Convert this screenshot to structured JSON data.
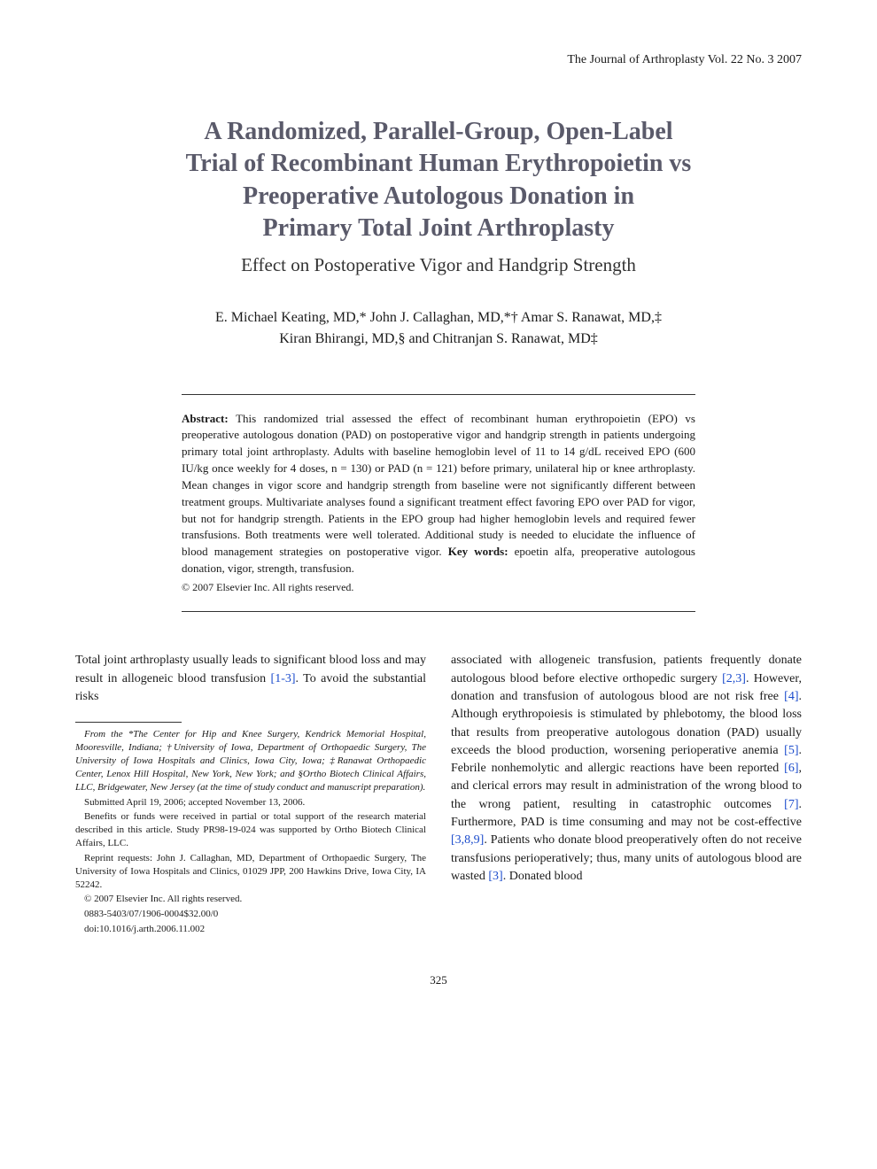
{
  "journal_header": "The Journal of Arthroplasty Vol. 22 No. 3 2007",
  "title_lines": [
    "A Randomized, Parallel-Group, Open-Label",
    "Trial of Recombinant Human Erythropoietin vs",
    "Preoperative Autologous Donation in",
    "Primary Total Joint Arthroplasty"
  ],
  "subtitle": "Effect on Postoperative Vigor and Handgrip Strength",
  "authors_line1": "E. Michael Keating, MD,* John J. Callaghan, MD,*† Amar S. Ranawat, MD,‡",
  "authors_line2": "Kiran Bhirangi, MD,§ and Chitranjan S. Ranawat, MD‡",
  "abstract": {
    "label": "Abstract:",
    "text": " This randomized trial assessed the effect of recombinant human erythropoietin (EPO) vs preoperative autologous donation (PAD) on postoperative vigor and handgrip strength in patients undergoing primary total joint arthroplasty. Adults with baseline hemoglobin level of 11 to 14 g/dL received EPO (600 IU/kg once weekly for 4 doses, n = 130) or PAD (n = 121) before primary, unilateral hip or knee arthroplasty. Mean changes in vigor score and handgrip strength from baseline were not significantly different between treatment groups. Multivariate analyses found a significant treatment effect favoring EPO over PAD for vigor, but not for handgrip strength. Patients in the EPO group had higher hemoglobin levels and required fewer transfusions. Both treatments were well tolerated. Additional study is needed to elucidate the influence of blood management strategies on postoperative vigor. ",
    "keywords_label": "Key words:",
    "keywords": " epoetin alfa, preoperative autologous donation, vigor, strength, transfusion.",
    "copyright": "© 2007 Elsevier Inc. All rights reserved."
  },
  "body": {
    "left_para": "Total joint arthroplasty usually leads to significant blood loss and may result in allogeneic blood transfusion ",
    "left_cite1": "[1-3]",
    "left_after1": ". To avoid the substantial risks",
    "right_start": "associated with allogeneic transfusion, patients frequently donate autologous blood before elective orthopedic surgery ",
    "right_c1": "[2,3]",
    "right_t1": ". However, donation and transfusion of autologous blood are not risk free ",
    "right_c2": "[4]",
    "right_t2": ". Although erythropoiesis is stimulated by phlebotomy, the blood loss that results from preoperative autologous donation (PAD) usually exceeds the blood production, worsening perioperative anemia ",
    "right_c3": "[5]",
    "right_t3": ". Febrile nonhemolytic and allergic reactions have been reported ",
    "right_c4": "[6]",
    "right_t4": ", and clerical errors may result in administration of the wrong blood to the wrong patient, resulting in catastrophic outcomes ",
    "right_c5": "[7]",
    "right_t5": ". Furthermore, PAD is time consuming and may not be cost-effective ",
    "right_c6": "[3,8,9]",
    "right_t6": ". Patients who donate blood preoperatively often do not receive transfusions perioperatively; thus, many units of autologous blood are wasted ",
    "right_c7": "[3]",
    "right_t7": ". Donated blood"
  },
  "footnotes": {
    "affil": "From the *The Center for Hip and Knee Surgery, Kendrick Memorial Hospital, Mooresville, Indiana; †University of Iowa, Department of Orthopaedic Surgery, The University of Iowa Hospitals and Clinics, Iowa City, Iowa; ‡Ranawat Orthopaedic Center, Lenox Hill Hospital, New York, New York; and §Ortho Biotech Clinical Affairs, LLC, Bridgewater, New Jersey (at the time of study conduct and manuscript preparation).",
    "submitted": "Submitted April 19, 2006; accepted November 13, 2006.",
    "benefits": "Benefits or funds were received in partial or total support of the research material described in this article. Study PR98-19-024 was supported by Ortho Biotech Clinical Affairs, LLC.",
    "reprint": "Reprint requests: John J. Callaghan, MD, Department of Orthopaedic Surgery, The University of Iowa Hospitals and Clinics, 01029 JPP, 200 Hawkins Drive, Iowa City, IA 52242.",
    "copyright": "© 2007 Elsevier Inc. All rights reserved.",
    "issn": "0883-5403/07/1906-0004$32.00/0",
    "doi": "doi:10.1016/j.arth.2006.11.002"
  },
  "page_number": "325",
  "colors": {
    "title_color": "#5a5a6a",
    "cite_color": "#1a4bcc",
    "text_color": "#1a1a1a"
  },
  "typography": {
    "title_fontsize": 28,
    "subtitle_fontsize": 21,
    "authors_fontsize": 16,
    "abstract_fontsize": 13,
    "body_fontsize": 14,
    "footnote_fontsize": 11
  }
}
